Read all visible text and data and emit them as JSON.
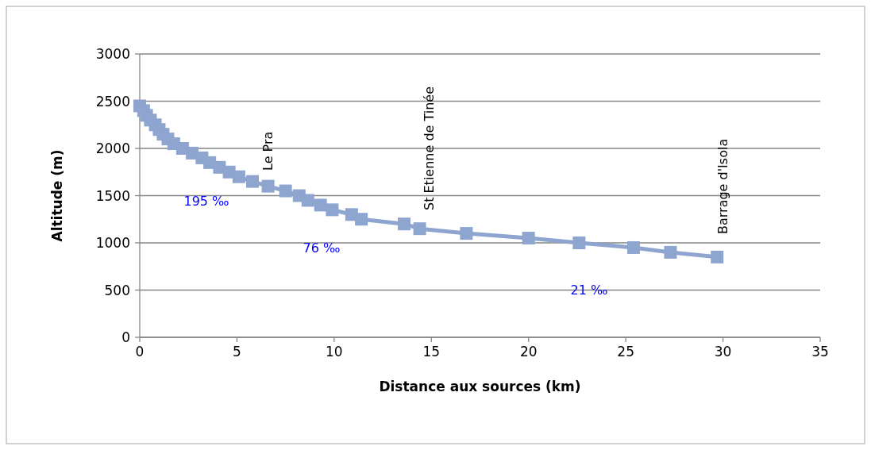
{
  "chart_data": {
    "type": "line",
    "xlabel": "Distance aux sources (km)",
    "ylabel": "Altitude (m)",
    "xlim": [
      0,
      35
    ],
    "xticks": [
      0,
      5,
      10,
      15,
      20,
      25,
      30,
      35
    ],
    "ylim": [
      0,
      3000
    ],
    "yticks": [
      0,
      500,
      1000,
      1500,
      2000,
      2500,
      3000
    ],
    "grid": "y",
    "marker": "square",
    "line_style": "solid",
    "series": [
      {
        "color": "#8ea5cf",
        "x": [
          0,
          0.2,
          0.35,
          0.55,
          0.8,
          1.0,
          1.2,
          1.45,
          1.75,
          2.2,
          2.7,
          3.2,
          3.6,
          4.1,
          4.6,
          5.1,
          5.8,
          6.6,
          7.5,
          8.2,
          8.65,
          9.3,
          9.9,
          10.9,
          11.4,
          13.6,
          14.4,
          16.8,
          20.0,
          22.6,
          25.4,
          27.3,
          29.7
        ],
        "values": [
          2450,
          2400,
          2350,
          2300,
          2250,
          2200,
          2150,
          2100,
          2050,
          2000,
          1950,
          1900,
          1850,
          1800,
          1750,
          1700,
          1650,
          1600,
          1550,
          1500,
          1450,
          1400,
          1350,
          1300,
          1250,
          1200,
          1150,
          1100,
          1050,
          1000,
          950,
          900,
          850
        ]
      }
    ],
    "annotations": [
      "Le Pra",
      "St Etienne de Tinée",
      "Barrage d'Isola",
      "195 ‰",
      "76 ‰",
      "21 ‰"
    ]
  }
}
